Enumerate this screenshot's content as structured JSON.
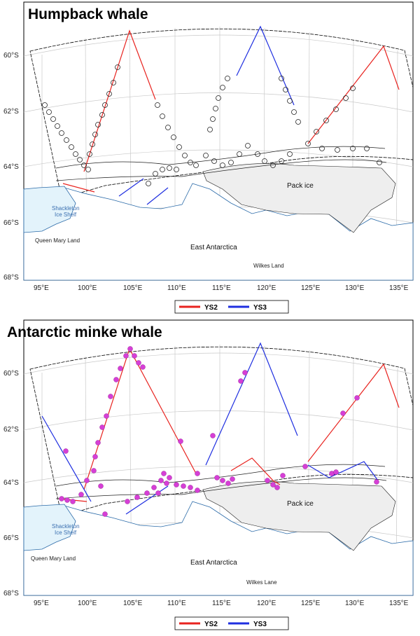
{
  "panels": [
    {
      "title": "Humpback whale",
      "lat_labels": [
        "60°S",
        "62°S",
        "64°S",
        "66°S",
        "68°S"
      ],
      "lon_labels": [
        "95°E",
        "100°E",
        "105°E",
        "110°E",
        "115°E",
        "120°E",
        "125°E",
        "130°E",
        "135°E"
      ],
      "places": {
        "pack_ice": "Pack ice",
        "shackleton_1": "Shackleton",
        "shackleton_2": "Ice Shelf",
        "queen_mary": "Queen Mary Land",
        "east_antarctica": "East Antarctica",
        "wilkes": "Wilkes Land"
      },
      "legend": [
        {
          "label": "YS2",
          "color": "#e8231f"
        },
        {
          "label": "YS3",
          "color": "#1f2fe0"
        }
      ],
      "marker_style": "open-circle"
    },
    {
      "title": "Antarctic minke whale",
      "lat_labels": [
        "60°S",
        "62°S",
        "64°S",
        "66°S",
        "68°S"
      ],
      "lon_labels": [
        "95°E",
        "100°E",
        "105°E",
        "110°E",
        "115°E",
        "120°E",
        "125°E",
        "130°E",
        "135°E"
      ],
      "places": {
        "pack_ice": "Pack ice",
        "shackleton_1": "Shackleton",
        "shackleton_2": "Ice Shelf",
        "queen_mary": "Queen Mary Land",
        "east_antarctica": "East Antarctica",
        "wilkes": "Wilkes Lane"
      },
      "legend": [
        {
          "label": "YS2",
          "color": "#e8231f"
        },
        {
          "label": "YS3",
          "color": "#1f2fe0"
        }
      ],
      "marker_style": "magenta-dot"
    }
  ],
  "colors": {
    "ys2": "#e8231f",
    "ys3": "#1f2fe0",
    "land_fill": "#ffffff",
    "ice_shelf_fill": "#e3f3fb",
    "pack_ice_fill": "#eeeeee",
    "coast": "#2a6aa8",
    "sighting_minke": "#d63fd6"
  }
}
